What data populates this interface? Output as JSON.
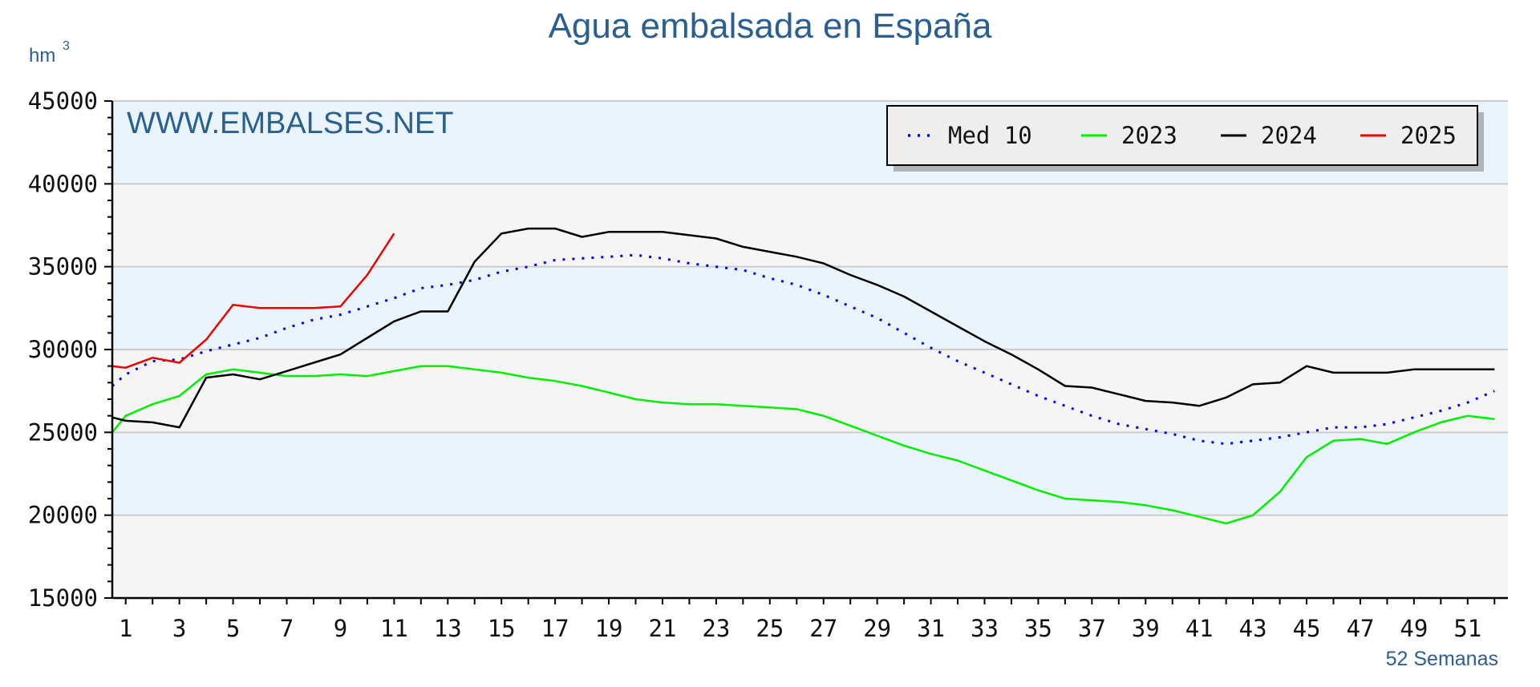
{
  "colors": {
    "band_light": "#f5f5f5",
    "band_blue": "#eaf4fc",
    "grid": "#cccccc",
    "title": "#2a5f8f"
  },
  "chart_data": {
    "type": "line",
    "title": "Agua embalsada en España",
    "ylabel": "hm",
    "ylabel_sup": "3",
    "xlabel": "52 Semanas",
    "watermark": "WWW.EMBALSES.NET",
    "xlim": [
      0.5,
      52.5
    ],
    "ylim": [
      15000,
      45000
    ],
    "x_ticks": [
      1,
      3,
      5,
      7,
      9,
      11,
      13,
      15,
      17,
      19,
      21,
      23,
      25,
      27,
      29,
      31,
      33,
      35,
      37,
      39,
      41,
      43,
      45,
      47,
      49,
      51
    ],
    "y_ticks": [
      15000,
      20000,
      25000,
      30000,
      35000,
      40000,
      45000
    ],
    "legend_position": "top-right",
    "series": [
      {
        "name": "Med 10",
        "color": "#0000ee",
        "style": "dotted",
        "x": [
          0.5,
          1,
          2,
          3,
          4,
          5,
          6,
          7,
          8,
          9,
          10,
          11,
          12,
          13,
          14,
          15,
          16,
          17,
          18,
          19,
          20,
          21,
          22,
          23,
          24,
          25,
          26,
          27,
          28,
          29,
          30,
          31,
          32,
          33,
          34,
          35,
          36,
          37,
          38,
          39,
          40,
          41,
          42,
          43,
          44,
          45,
          46,
          47,
          48,
          49,
          50,
          51,
          52
        ],
        "values": [
          27800,
          28500,
          29300,
          29400,
          29900,
          30300,
          30700,
          31300,
          31800,
          32100,
          32600,
          33100,
          33700,
          33900,
          34200,
          34700,
          35000,
          35400,
          35500,
          35600,
          35700,
          35500,
          35200,
          35000,
          34800,
          34300,
          33900,
          33300,
          32600,
          31900,
          31000,
          30100,
          29300,
          28600,
          27900,
          27200,
          26600,
          26000,
          25500,
          25200,
          24900,
          24500,
          24300,
          24500,
          24700,
          25000,
          25300,
          25300,
          25500,
          25900,
          26300,
          26800,
          27500
        ]
      },
      {
        "name": "2023",
        "color": "#00ee00",
        "style": "solid",
        "x": [
          0.5,
          1,
          2,
          3,
          4,
          5,
          6,
          7,
          8,
          9,
          10,
          11,
          12,
          13,
          14,
          15,
          16,
          17,
          18,
          19,
          20,
          21,
          22,
          23,
          24,
          25,
          26,
          27,
          28,
          29,
          30,
          31,
          32,
          33,
          34,
          35,
          36,
          37,
          38,
          39,
          40,
          41,
          42,
          43,
          44,
          45,
          46,
          47,
          48,
          49,
          50,
          51,
          52
        ],
        "values": [
          25000,
          26000,
          26700,
          27200,
          28500,
          28800,
          28600,
          28400,
          28400,
          28500,
          28400,
          28700,
          29000,
          29000,
          28800,
          28600,
          28300,
          28100,
          27800,
          27400,
          27000,
          26800,
          26700,
          26700,
          26600,
          26500,
          26400,
          26000,
          25400,
          24800,
          24200,
          23700,
          23300,
          22700,
          22100,
          21500,
          21000,
          20900,
          20800,
          20600,
          20300,
          19900,
          19500,
          20000,
          21400,
          23500,
          24500,
          24600,
          24300,
          25000,
          25600,
          26000,
          25800
        ]
      },
      {
        "name": "2024",
        "color": "#000000",
        "style": "solid",
        "x": [
          0.5,
          1,
          2,
          3,
          4,
          5,
          6,
          7,
          8,
          9,
          10,
          11,
          12,
          13,
          14,
          15,
          16,
          17,
          18,
          19,
          20,
          21,
          22,
          23,
          24,
          25,
          26,
          27,
          28,
          29,
          30,
          31,
          32,
          33,
          34,
          35,
          36,
          37,
          38,
          39,
          40,
          41,
          42,
          43,
          44,
          45,
          46,
          47,
          48,
          49,
          50,
          51,
          52
        ],
        "values": [
          25900,
          25700,
          25600,
          25300,
          28300,
          28500,
          28200,
          28700,
          29200,
          29700,
          30700,
          31700,
          32300,
          32300,
          35300,
          37000,
          37300,
          37300,
          36800,
          37100,
          37100,
          37100,
          36900,
          36700,
          36200,
          35900,
          35600,
          35200,
          34500,
          33900,
          33200,
          32300,
          31400,
          30500,
          29700,
          28800,
          27800,
          27700,
          27300,
          26900,
          26800,
          26600,
          27100,
          27900,
          28000,
          29000,
          28600,
          28600,
          28600,
          28800,
          28800,
          28800,
          28800
        ]
      },
      {
        "name": "2025",
        "color": "#ee0000",
        "style": "solid",
        "x": [
          0.5,
          1,
          2,
          3,
          4,
          5,
          6,
          7,
          8,
          9,
          10,
          11
        ],
        "values": [
          29000,
          28900,
          29500,
          29200,
          30600,
          32700,
          32500,
          32500,
          32500,
          32600,
          34500,
          37000
        ]
      }
    ]
  }
}
